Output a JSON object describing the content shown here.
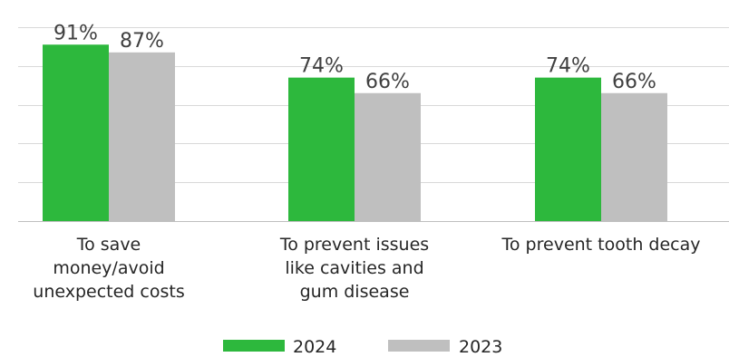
{
  "chart_data": {
    "type": "bar",
    "categories": [
      [
        "To save",
        "money/avoid",
        "unexpected costs"
      ],
      [
        "To prevent issues",
        "like cavities and",
        "gum disease"
      ],
      [
        "To prevent tooth decay"
      ]
    ],
    "series": [
      {
        "name": "2024",
        "color": "#2db83d",
        "values": [
          91,
          74,
          74
        ],
        "labels": [
          "91%",
          "74%",
          "74%"
        ]
      },
      {
        "name": "2023",
        "color": "#bfbfbf",
        "values": [
          87,
          66,
          66
        ],
        "labels": [
          "87%",
          "66%",
          "66%"
        ]
      }
    ],
    "ylim": [
      0,
      100
    ],
    "y_gridlines": [
      0,
      20,
      40,
      60,
      80,
      100
    ],
    "grid": true,
    "legend_position": "bottom-center",
    "title": "",
    "xlabel": "",
    "ylabel": ""
  }
}
